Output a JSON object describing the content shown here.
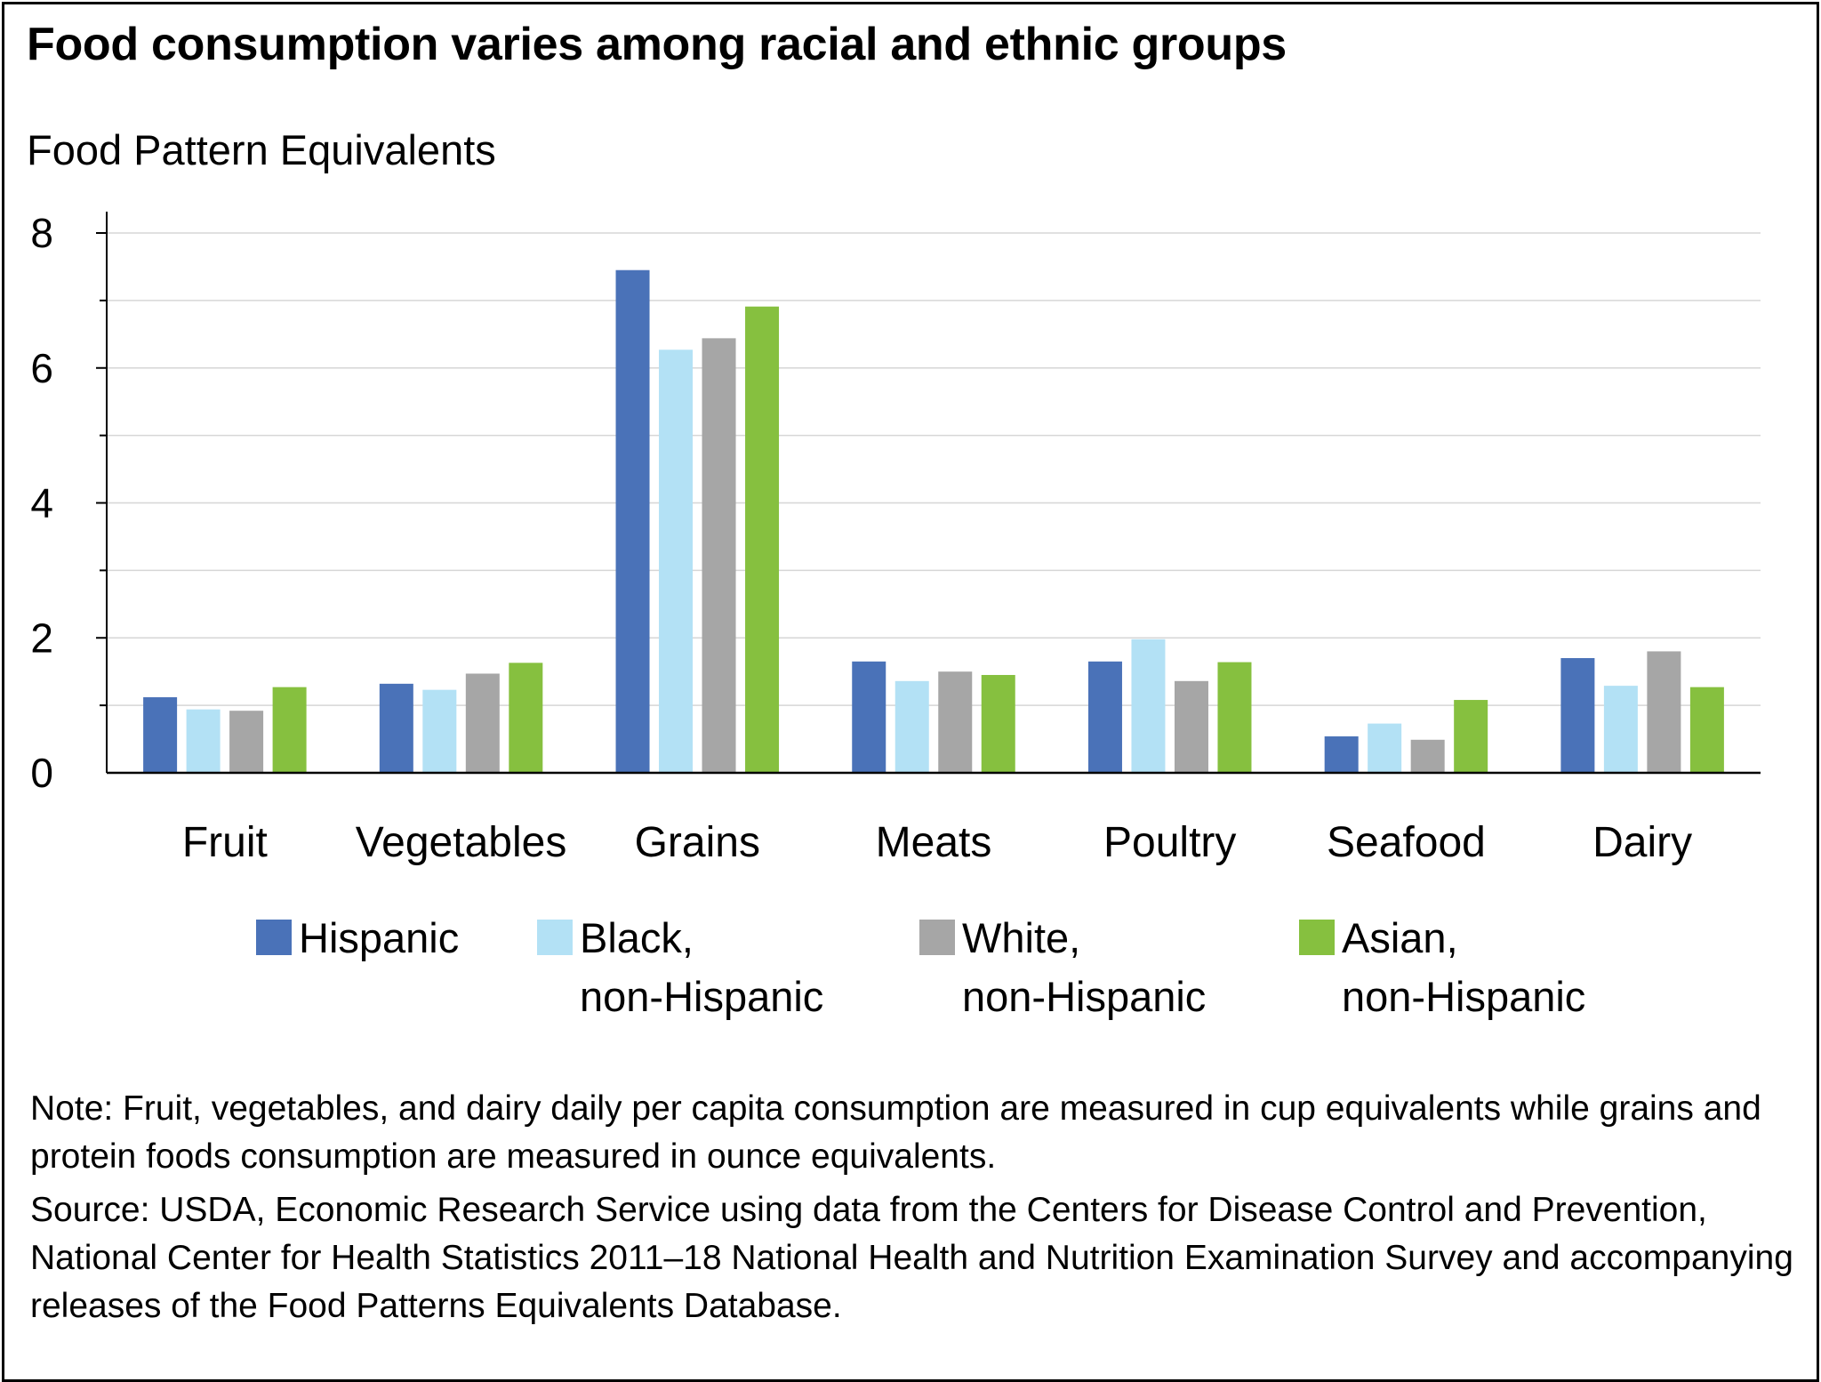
{
  "title": "Food consumption varies among racial and ethnic groups",
  "y_axis_title": "Food Pattern Equivalents",
  "note": "Note: Fruit, vegetables, and dairy daily per capita consumption are measured in cup equivalents while grains and protein foods consumption are measured in ounce equivalents.",
  "source": "Source: USDA, Economic Research Service using data from the Centers for Disease Control and Prevention, National Center for Health Statistics 2011–18 National Health and Nutrition Examination Survey and accompanying releases of the Food Patterns Equivalents Database.",
  "legend": [
    {
      "line1": "Hispanic",
      "line2": ""
    },
    {
      "line1": "Black,",
      "line2": "non-Hispanic"
    },
    {
      "line1": "White,",
      "line2": "non-Hispanic"
    },
    {
      "line1": "Asian,",
      "line2": "non-Hispanic"
    }
  ],
  "chart_data": {
    "type": "bar",
    "title": "Food consumption varies among racial and ethnic groups",
    "ylabel": "Food Pattern Equivalents",
    "xlabel": "",
    "ylim": [
      0,
      8
    ],
    "yticks": [
      0,
      2,
      4,
      6,
      8
    ],
    "grid": true,
    "legend_position": "bottom",
    "categories": [
      "Fruit",
      "Vegetables",
      "Grains",
      "Meats",
      "Poultry",
      "Seafood",
      "Dairy"
    ],
    "series": [
      {
        "name": "Hispanic",
        "color": "#4a72b8",
        "values": [
          1.12,
          1.32,
          7.45,
          1.65,
          1.65,
          0.54,
          1.7
        ]
      },
      {
        "name": "Black, non-Hispanic",
        "color": "#b3e1f5",
        "values": [
          0.94,
          1.23,
          6.27,
          1.36,
          1.98,
          0.73,
          1.29
        ]
      },
      {
        "name": "White, non-Hispanic",
        "color": "#a6a6a6",
        "values": [
          0.92,
          1.47,
          6.44,
          1.5,
          1.36,
          0.49,
          1.8
        ]
      },
      {
        "name": "Asian, non-Hispanic",
        "color": "#86c03f",
        "values": [
          1.27,
          1.63,
          6.91,
          1.45,
          1.64,
          1.08,
          1.27
        ]
      }
    ]
  }
}
